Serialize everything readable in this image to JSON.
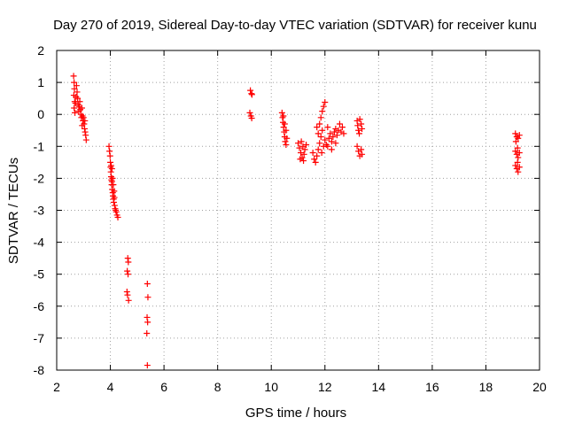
{
  "chart_data": {
    "type": "scatter",
    "title": "Day 270 of 2019, Sidereal Day-to-day VTEC variation (SDTVAR) for receiver kunu",
    "xlabel": "GPS time / hours",
    "ylabel": "SDTVAR / TECUs",
    "xlim": [
      2,
      20
    ],
    "ylim": [
      -8,
      2
    ],
    "grid": true,
    "marker": "+",
    "marker_color": "#ff0000",
    "xticks": [
      "2",
      "4",
      "6",
      "8",
      "10",
      "12",
      "14",
      "16",
      "18",
      "20"
    ],
    "yticks": [
      "2",
      "1",
      "0",
      "-1",
      "-2",
      "-3",
      "-4",
      "-5",
      "-6",
      "-7",
      "-8"
    ],
    "series": [
      {
        "name": "SDTVAR",
        "points": [
          [
            2.63,
            1.2
          ],
          [
            2.65,
            1.0
          ],
          [
            2.66,
            0.8
          ],
          [
            2.64,
            0.6
          ],
          [
            2.67,
            0.4
          ],
          [
            2.65,
            0.2
          ],
          [
            2.68,
            0.05
          ],
          [
            2.7,
            0.35
          ],
          [
            2.72,
            0.55
          ],
          [
            2.74,
            0.9
          ],
          [
            2.76,
            0.7
          ],
          [
            2.78,
            0.5
          ],
          [
            2.8,
            0.3
          ],
          [
            2.82,
            0.1
          ],
          [
            2.84,
            0.25
          ],
          [
            2.86,
            0.4
          ],
          [
            2.88,
            0.15
          ],
          [
            2.9,
            0.0
          ],
          [
            2.92,
            -0.1
          ],
          [
            2.94,
            0.2
          ],
          [
            2.96,
            -0.05
          ],
          [
            2.98,
            -0.2
          ],
          [
            3.0,
            -0.1
          ],
          [
            3.02,
            -0.3
          ],
          [
            3.04,
            -0.45
          ],
          [
            3.06,
            -0.55
          ],
          [
            3.08,
            -0.65
          ],
          [
            3.1,
            -0.8
          ],
          [
            2.95,
            -0.35
          ],
          [
            3.05,
            -0.2
          ],
          [
            3.95,
            -1.0
          ],
          [
            3.97,
            -1.15
          ],
          [
            3.99,
            -1.3
          ],
          [
            4.0,
            -1.5
          ],
          [
            4.01,
            -1.65
          ],
          [
            4.02,
            -1.8
          ],
          [
            4.03,
            -1.95
          ],
          [
            4.04,
            -2.05
          ],
          [
            4.05,
            -2.2
          ],
          [
            4.06,
            -1.7
          ],
          [
            4.07,
            -2.35
          ],
          [
            4.08,
            -2.0
          ],
          [
            4.09,
            -2.45
          ],
          [
            4.1,
            -2.55
          ],
          [
            4.11,
            -2.2
          ],
          [
            4.12,
            -2.65
          ],
          [
            4.13,
            -2.75
          ],
          [
            4.14,
            -2.4
          ],
          [
            4.16,
            -2.85
          ],
          [
            4.18,
            -2.95
          ],
          [
            4.2,
            -3.0
          ],
          [
            4.22,
            -3.05
          ],
          [
            4.25,
            -3.15
          ],
          [
            4.28,
            -3.22
          ],
          [
            4.03,
            -1.6
          ],
          [
            4.06,
            -2.1
          ],
          [
            4.15,
            -2.6
          ],
          [
            4.65,
            -4.5
          ],
          [
            4.67,
            -4.62
          ],
          [
            4.63,
            -4.9
          ],
          [
            4.66,
            -5.0
          ],
          [
            4.62,
            -5.55
          ],
          [
            4.64,
            -5.65
          ],
          [
            4.68,
            -5.82
          ],
          [
            5.38,
            -5.3
          ],
          [
            5.4,
            -5.72
          ],
          [
            5.37,
            -6.35
          ],
          [
            5.39,
            -6.5
          ],
          [
            5.36,
            -6.85
          ],
          [
            5.38,
            -7.85
          ],
          [
            9.22,
            0.75
          ],
          [
            9.26,
            0.65
          ],
          [
            9.28,
            0.62
          ],
          [
            9.2,
            0.05
          ],
          [
            9.24,
            -0.05
          ],
          [
            9.27,
            -0.12
          ],
          [
            10.4,
            0.05
          ],
          [
            10.42,
            -0.1
          ],
          [
            10.44,
            -0.25
          ],
          [
            10.46,
            -0.4
          ],
          [
            10.48,
            -0.55
          ],
          [
            10.5,
            -0.7
          ],
          [
            10.52,
            -0.85
          ],
          [
            10.55,
            -0.95
          ],
          [
            10.45,
            -0.05
          ],
          [
            10.5,
            -0.3
          ],
          [
            10.55,
            -0.5
          ],
          [
            10.58,
            -0.75
          ],
          [
            11.0,
            -0.9
          ],
          [
            11.05,
            -1.05
          ],
          [
            11.1,
            -1.2
          ],
          [
            11.15,
            -1.35
          ],
          [
            11.2,
            -1.45
          ],
          [
            11.25,
            -1.1
          ],
          [
            11.3,
            -0.95
          ],
          [
            11.12,
            -0.85
          ],
          [
            11.22,
            -1.25
          ],
          [
            11.08,
            -1.4
          ],
          [
            11.18,
            -1.0
          ],
          [
            11.55,
            -1.2
          ],
          [
            11.6,
            -1.4
          ],
          [
            11.65,
            -1.5
          ],
          [
            11.7,
            -1.3
          ],
          [
            11.75,
            -1.1
          ],
          [
            11.8,
            -0.9
          ],
          [
            11.85,
            -0.7
          ],
          [
            11.9,
            -0.5
          ],
          [
            11.8,
            -0.3
          ],
          [
            11.85,
            -0.1
          ],
          [
            11.9,
            0.1
          ],
          [
            11.95,
            0.25
          ],
          [
            12.0,
            0.38
          ],
          [
            11.75,
            -0.6
          ],
          [
            11.7,
            -0.4
          ],
          [
            11.88,
            -1.2
          ],
          [
            11.95,
            -1.0
          ],
          [
            12.0,
            -0.8
          ],
          [
            12.05,
            -0.95
          ],
          [
            12.1,
            -1.0
          ],
          [
            12.15,
            -0.75
          ],
          [
            12.2,
            -0.6
          ],
          [
            12.25,
            -0.85
          ],
          [
            12.3,
            -0.7
          ],
          [
            12.35,
            -0.55
          ],
          [
            12.4,
            -0.45
          ],
          [
            12.45,
            -0.65
          ],
          [
            12.5,
            -0.5
          ],
          [
            12.55,
            -0.3
          ],
          [
            12.6,
            -0.55
          ],
          [
            12.65,
            -0.4
          ],
          [
            12.7,
            -0.6
          ],
          [
            12.1,
            -0.4
          ],
          [
            12.25,
            -1.1
          ],
          [
            12.4,
            -0.9
          ],
          [
            13.2,
            -0.2
          ],
          [
            13.22,
            -0.35
          ],
          [
            13.25,
            -0.5
          ],
          [
            13.3,
            -0.15
          ],
          [
            13.35,
            -0.3
          ],
          [
            13.38,
            -0.45
          ],
          [
            13.28,
            -0.6
          ],
          [
            13.2,
            -1.0
          ],
          [
            13.25,
            -1.15
          ],
          [
            13.3,
            -1.3
          ],
          [
            13.35,
            -1.1
          ],
          [
            13.38,
            -1.25
          ],
          [
            19.1,
            -0.6
          ],
          [
            19.15,
            -0.7
          ],
          [
            19.2,
            -0.75
          ],
          [
            19.25,
            -0.65
          ],
          [
            19.12,
            -0.85
          ],
          [
            19.1,
            -1.15
          ],
          [
            19.15,
            -1.25
          ],
          [
            19.2,
            -1.35
          ],
          [
            19.25,
            -1.2
          ],
          [
            19.18,
            -1.05
          ],
          [
            19.1,
            -1.6
          ],
          [
            19.15,
            -1.7
          ],
          [
            19.2,
            -1.8
          ],
          [
            19.25,
            -1.65
          ],
          [
            19.18,
            -1.5
          ]
        ]
      }
    ]
  }
}
